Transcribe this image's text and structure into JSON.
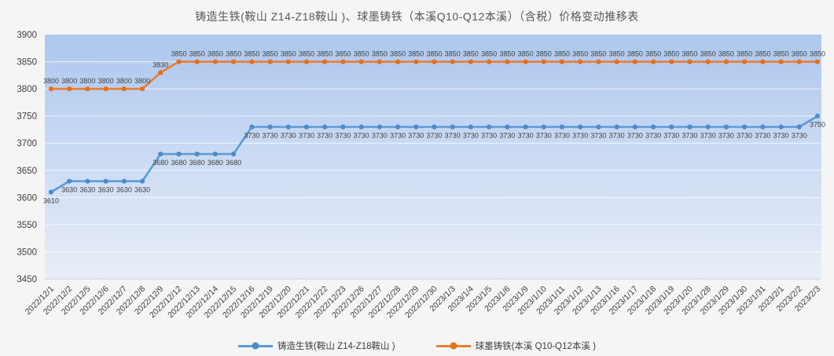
{
  "colors": {
    "series1": "#5B9BD5",
    "series1_marker": "#4E8BC9",
    "series2": "#ED7D31",
    "series2_marker": "#E2701F",
    "plot_bg_top": "#adc7ee",
    "plot_bg_bottom": "#e9eef8",
    "gridline": "rgba(255,255,255,0.75)",
    "axis_line": "#c9cdd4",
    "tick_text": "#3d3d3d",
    "data_label_text": "#404040",
    "outer_bg": "#f5f5f5",
    "title_text": "#575757"
  },
  "chart_data": {
    "type": "line",
    "title": "铸造生铁(鞍山 Z14-Z18鞍山 )、球墨铸铁（本溪Q10-Q12本溪）（含税）价格变动推移表",
    "xlabel": "",
    "ylabel": "",
    "ylim": [
      3450,
      3900
    ],
    "yticks": [
      3900,
      3850,
      3800,
      3750,
      3700,
      3650,
      3600,
      3550,
      3500,
      3450
    ],
    "grid": true,
    "data_labels": true,
    "legend_position": "bottom",
    "x_label_rotation": -45,
    "categories": [
      "2022/12/1",
      "2022/12/2",
      "2022/12/5",
      "2022/12/6",
      "2022/12/7",
      "2022/12/8",
      "2022/12/9",
      "2022/12/12",
      "2022/12/13",
      "2022/12/14",
      "2022/12/15",
      "2022/12/16",
      "2022/12/19",
      "2022/12/20",
      "2022/12/21",
      "2022/12/22",
      "2022/12/23",
      "2022/12/26",
      "2022/12/27",
      "2022/12/28",
      "2022/12/29",
      "2022/12/30",
      "2023/1/3",
      "2023/1/4",
      "2023/1/5",
      "2023/1/6",
      "2023/1/9",
      "2023/1/10",
      "2023/1/11",
      "2023/1/12",
      "2023/1/13",
      "2023/1/16",
      "2023/1/17",
      "2023/1/18",
      "2023/1/19",
      "2023/1/20",
      "2023/1/28",
      "2023/1/29",
      "2023/1/30",
      "2023/1/31",
      "2023/2/1",
      "2023/2/2",
      "2023/2/3"
    ],
    "series": [
      {
        "name": "铸造生铁(鞍山 Z14-Z18鞍山 )",
        "color": "#5B9BD5",
        "marker_color": "#4E8BC9",
        "label_position": "below",
        "values": [
          3610,
          3630,
          3630,
          3630,
          3630,
          3630,
          3680,
          3680,
          3680,
          3680,
          3680,
          3730,
          3730,
          3730,
          3730,
          3730,
          3730,
          3730,
          3730,
          3730,
          3730,
          3730,
          3730,
          3730,
          3730,
          3730,
          3730,
          3730,
          3730,
          3730,
          3730,
          3730,
          3730,
          3730,
          3730,
          3730,
          3730,
          3730,
          3730,
          3730,
          3730,
          3730,
          3750
        ]
      },
      {
        "name": "球墨铸铁(本溪 Q10-Q12本溪 )",
        "color": "#ED7D31",
        "marker_color": "#E2701F",
        "label_position": "above",
        "values": [
          3800,
          3800,
          3800,
          3800,
          3800,
          3800,
          3830,
          3850,
          3850,
          3850,
          3850,
          3850,
          3850,
          3850,
          3850,
          3850,
          3850,
          3850,
          3850,
          3850,
          3850,
          3850,
          3850,
          3850,
          3850,
          3850,
          3850,
          3850,
          3850,
          3850,
          3850,
          3850,
          3850,
          3850,
          3850,
          3850,
          3850,
          3850,
          3850,
          3850,
          3850,
          3850,
          3850
        ]
      }
    ]
  }
}
